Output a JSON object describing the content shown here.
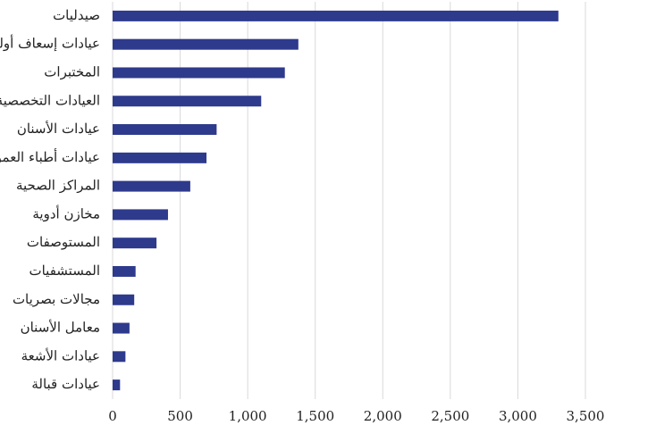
{
  "chart_data": {
    "type": "hbar",
    "categories": [
      "صيدليات",
      "عيادات إسعاف أولي",
      "المختبرات",
      "العيادات التخصصية",
      "عيادات الأسنان",
      "عيادات أطباء العموم",
      "المراكز الصحية",
      "مخازن أدوية",
      "المستوصفات",
      "المستشفيات",
      "مجالات بصريات",
      "معامل الأسنان",
      "عيادات الأشعة",
      "عيادات قبالة"
    ],
    "values": [
      3300,
      1375,
      1275,
      1100,
      770,
      695,
      575,
      410,
      325,
      170,
      160,
      125,
      95,
      55
    ],
    "color": "#2e3a8c",
    "xlim": [
      0,
      3500
    ],
    "xticks": [
      0,
      500,
      {
        "value": 1000,
        "label": "1,000"
      },
      {
        "value": 1500,
        "label": "1,500"
      },
      {
        "value": 2000,
        "label": "2,000"
      },
      {
        "value": 2500,
        "label": "2,500"
      },
      {
        "value": 3000,
        "label": "3,000"
      },
      {
        "value": 3500,
        "label": "3,500"
      }
    ],
    "grid": true
  }
}
